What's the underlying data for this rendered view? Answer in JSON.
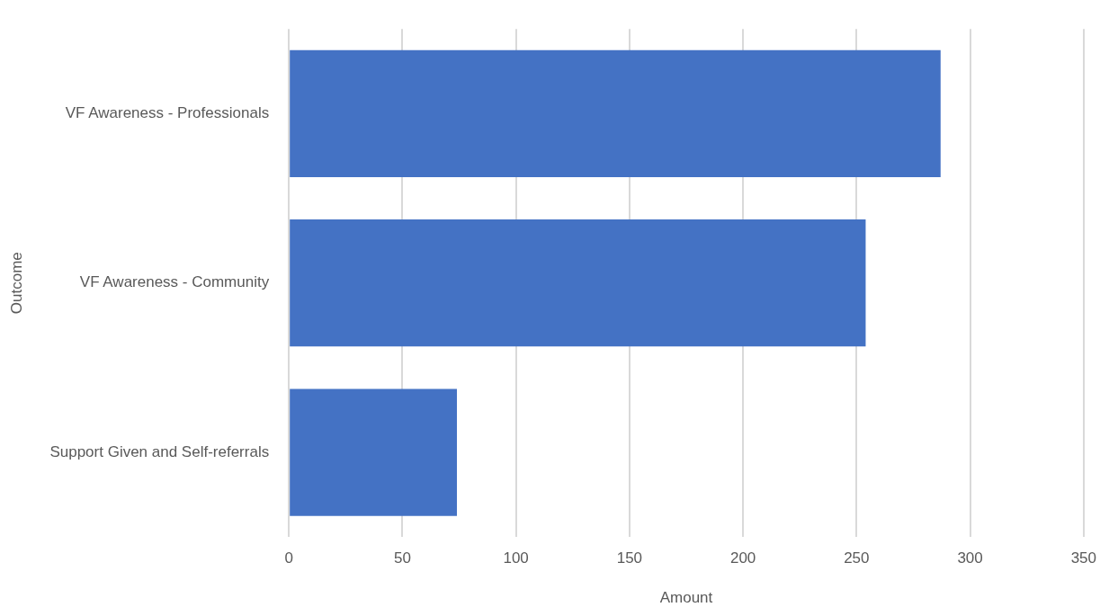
{
  "chart_data": {
    "type": "bar",
    "orientation": "horizontal",
    "categories": [
      "VF Awareness - Professionals",
      "VF Awareness - Community",
      "Support Given and Self-referrals"
    ],
    "values": [
      287,
      254,
      74
    ],
    "color": "#4472c4",
    "xlabel": "Amount",
    "ylabel": "Outcome",
    "xlim": [
      0,
      350
    ],
    "xticks": [
      0,
      50,
      100,
      150,
      200,
      250,
      300,
      350
    ],
    "grid": "x",
    "legend": false
  }
}
